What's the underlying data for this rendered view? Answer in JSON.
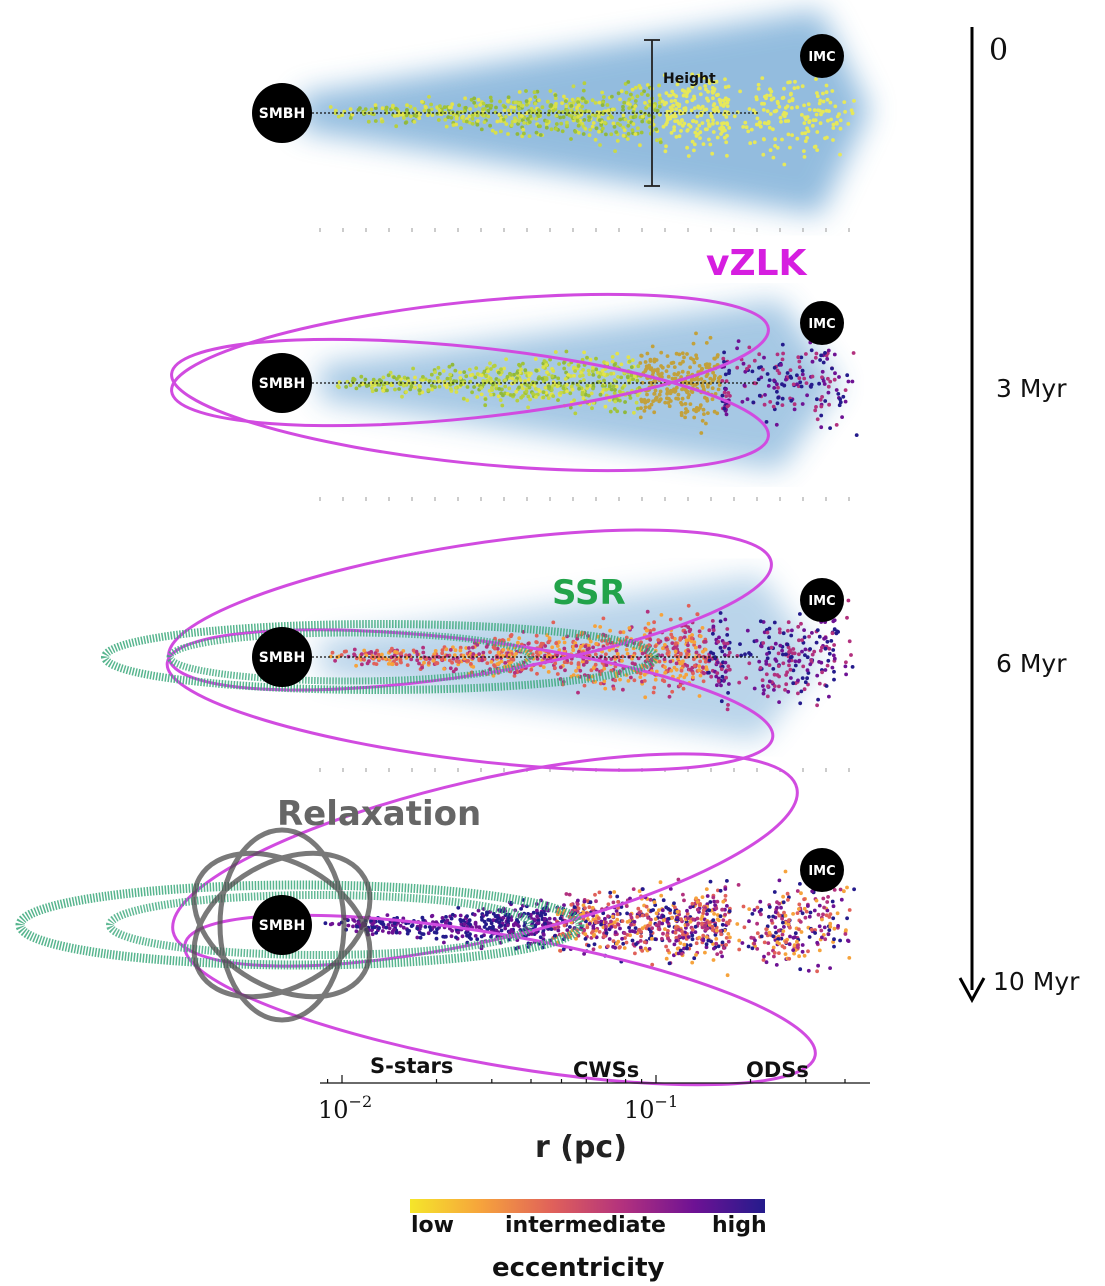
{
  "figure": {
    "timeline": {
      "labels": [
        "0",
        "3 Myr",
        "6 Myr",
        "10 Myr"
      ]
    },
    "bodies": {
      "smbh": "SMBH",
      "imc": "IMC"
    },
    "annotations": {
      "height": "Height"
    },
    "processes": {
      "vzlk": "vZLK",
      "ssr": "SSR",
      "relaxation": "Relaxation"
    },
    "populations": {
      "s_stars": "S-stars",
      "cwss": "CWSs",
      "odss": "ODSs"
    },
    "axis": {
      "title": "r (pc)",
      "scale": "log",
      "tick_labels": [
        {
          "base": "10",
          "exp": "−2"
        },
        {
          "base": "10",
          "exp": "−1"
        }
      ]
    },
    "colorbar": {
      "labels": [
        "low",
        "intermediate",
        "high"
      ],
      "title": "eccentricity",
      "colors": [
        "#f5e62a",
        "#f6a33c",
        "#e0615a",
        "#b2317e",
        "#6e1294",
        "#241b8c"
      ]
    },
    "colors": {
      "vzlk": "#d14be0",
      "ssr": "#22a34a",
      "relaxation": "#5a5a5a",
      "disk_glow": "#2d7fc0",
      "ssr_orbit": "#3aa87a"
    }
  }
}
